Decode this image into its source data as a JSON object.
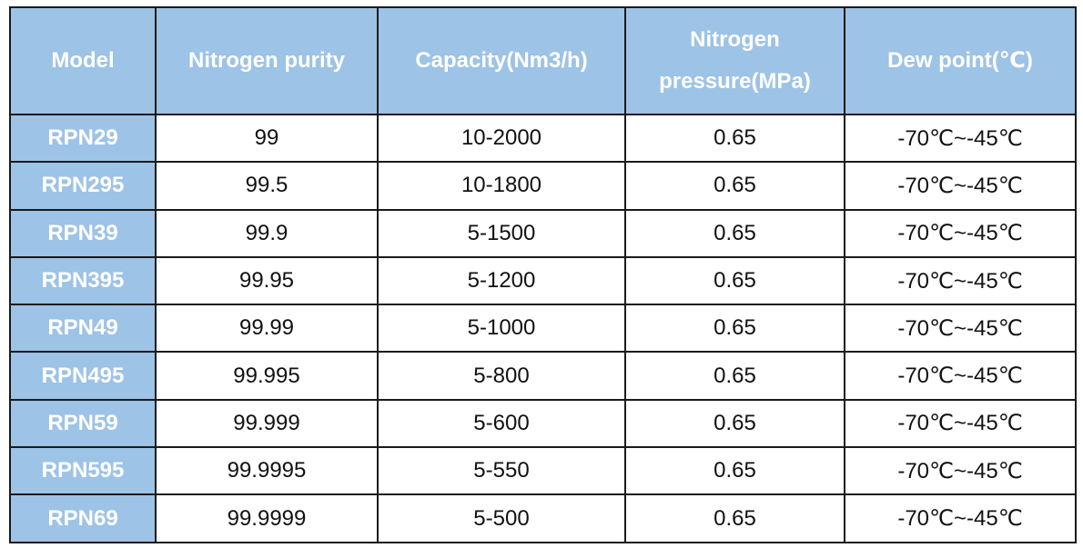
{
  "table": {
    "header_bg": "#9dc3e6",
    "header_text_color": "#ffffff",
    "headers": [
      "Model",
      "Nitrogen purity",
      "Capacity(Nm3/h)",
      "Nitrogen pressure(MPa)",
      "Dew point(℃)"
    ],
    "rows": [
      [
        "RPN29",
        "99",
        "10-2000",
        "0.65",
        "-70℃~-45℃"
      ],
      [
        "RPN295",
        "99.5",
        "10-1800",
        "0.65",
        "-70℃~-45℃"
      ],
      [
        "RPN39",
        "99.9",
        "5-1500",
        "0.65",
        "-70℃~-45℃"
      ],
      [
        "RPN395",
        "99.95",
        "5-1200",
        "0.65",
        "-70℃~-45℃"
      ],
      [
        "RPN49",
        "99.99",
        "5-1000",
        "0.65",
        "-70℃~-45℃"
      ],
      [
        "RPN495",
        "99.995",
        "5-800",
        "0.65",
        "-70℃~-45℃"
      ],
      [
        "RPN59",
        "99.999",
        "5-600",
        "0.65",
        "-70℃~-45℃"
      ],
      [
        "RPN595",
        "99.9995",
        "5-550",
        "0.65",
        "-70℃~-45℃"
      ],
      [
        "RPN69",
        "99.9999",
        "5-500",
        "0.65",
        "-70℃~-45℃"
      ]
    ]
  }
}
